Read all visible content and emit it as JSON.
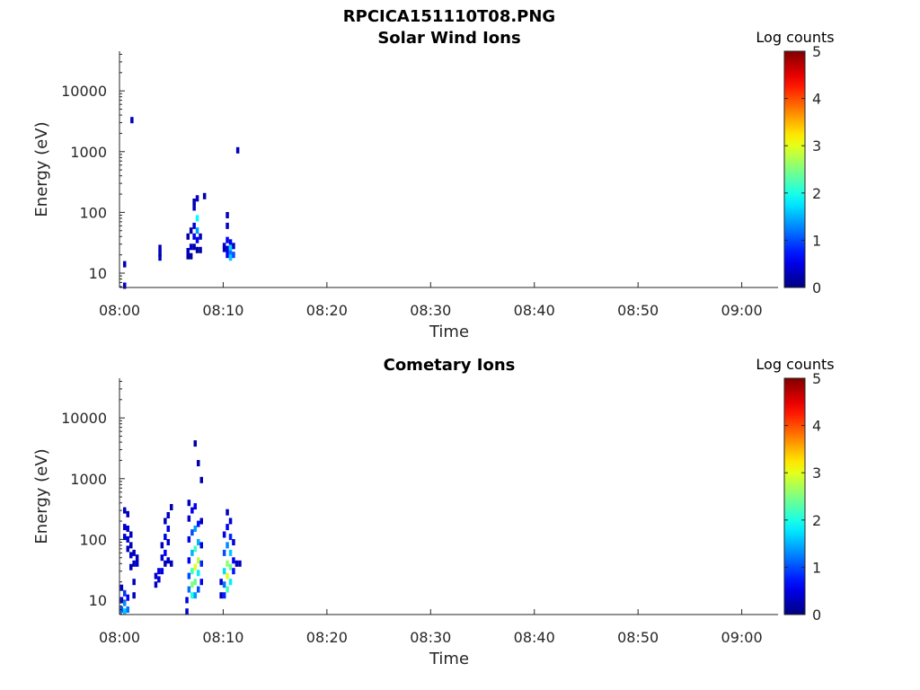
{
  "figure_title": "RPCICA151110T08.PNG",
  "chart_data": [
    {
      "type": "heatmap",
      "title": "Solar Wind Ions",
      "xlabel": "Time",
      "ylabel": "Energy (eV)",
      "x_ticks": [
        "08:00",
        "08:10",
        "08:20",
        "08:30",
        "08:40",
        "08:50",
        "09:00"
      ],
      "xlim_minutes": [
        0,
        63.5
      ],
      "y_scale": "log",
      "y_ticks": [
        "10",
        "100",
        "1000",
        "10000"
      ],
      "ylim": [
        5.8,
        45000
      ],
      "colorbar": {
        "label": "Log counts",
        "ticks": [
          "0",
          "1",
          "2",
          "3",
          "4",
          "5"
        ],
        "range": [
          0,
          5
        ],
        "colormap": "jet"
      },
      "cells": [
        {
          "t": 0.5,
          "e": 14,
          "v": 0.3
        },
        {
          "t": 0.5,
          "e": 6.2,
          "v": 0.4
        },
        {
          "t": 1.2,
          "e": 3300,
          "v": 0.3
        },
        {
          "t": 3.9,
          "e": 26,
          "v": 0.3
        },
        {
          "t": 3.9,
          "e": 21,
          "v": 0.2
        },
        {
          "t": 3.9,
          "e": 18,
          "v": 0.3
        },
        {
          "t": 6.6,
          "e": 19,
          "v": 0.2
        },
        {
          "t": 6.6,
          "e": 23,
          "v": 0.3
        },
        {
          "t": 6.6,
          "e": 40,
          "v": 0.2
        },
        {
          "t": 6.9,
          "e": 27,
          "v": 0.4
        },
        {
          "t": 6.9,
          "e": 50,
          "v": 0.2
        },
        {
          "t": 6.9,
          "e": 19,
          "v": 0.2
        },
        {
          "t": 7.2,
          "e": 60,
          "v": 0.4
        },
        {
          "t": 7.2,
          "e": 40,
          "v": 0.5
        },
        {
          "t": 7.2,
          "e": 27,
          "v": 0.2
        },
        {
          "t": 7.2,
          "e": 120,
          "v": 0.3
        },
        {
          "t": 7.2,
          "e": 150,
          "v": 0.2
        },
        {
          "t": 7.5,
          "e": 80,
          "v": 1.9
        },
        {
          "t": 7.5,
          "e": 50,
          "v": 1.4
        },
        {
          "t": 7.5,
          "e": 35,
          "v": 0.6
        },
        {
          "t": 7.5,
          "e": 170,
          "v": 0.3
        },
        {
          "t": 7.5,
          "e": 24,
          "v": 0.2
        },
        {
          "t": 7.8,
          "e": 40,
          "v": 0.3
        },
        {
          "t": 7.8,
          "e": 24,
          "v": 0.2
        },
        {
          "t": 8.2,
          "e": 185,
          "v": 0.2
        },
        {
          "t": 10.1,
          "e": 28,
          "v": 0.4
        },
        {
          "t": 10.1,
          "e": 25,
          "v": 0.2
        },
        {
          "t": 10.4,
          "e": 90,
          "v": 0.3
        },
        {
          "t": 10.4,
          "e": 60,
          "v": 0.3
        },
        {
          "t": 10.4,
          "e": 35,
          "v": 0.6
        },
        {
          "t": 10.4,
          "e": 25,
          "v": 0.5
        },
        {
          "t": 10.4,
          "e": 20,
          "v": 0.6
        },
        {
          "t": 10.7,
          "e": 32,
          "v": 0.5
        },
        {
          "t": 10.7,
          "e": 26,
          "v": 1.7
        },
        {
          "t": 10.7,
          "e": 21,
          "v": 1.2
        },
        {
          "t": 10.7,
          "e": 18,
          "v": 1.6
        },
        {
          "t": 11.0,
          "e": 28,
          "v": 0.4
        },
        {
          "t": 11.0,
          "e": 20,
          "v": 1.0
        },
        {
          "t": 11.4,
          "e": 1050,
          "v": 0.3
        }
      ]
    },
    {
      "type": "heatmap",
      "title": "Cometary Ions",
      "xlabel": "Time",
      "ylabel": "Energy (eV)",
      "x_ticks": [
        "08:00",
        "08:10",
        "08:20",
        "08:30",
        "08:40",
        "08:50",
        "09:00"
      ],
      "xlim_minutes": [
        0,
        63.5
      ],
      "y_scale": "log",
      "y_ticks": [
        "10",
        "100",
        "1000",
        "10000"
      ],
      "ylim": [
        5.8,
        45000
      ],
      "colorbar": {
        "label": "Log counts",
        "ticks": [
          "0",
          "1",
          "2",
          "3",
          "4",
          "5"
        ],
        "range": [
          0,
          5
        ],
        "colormap": "jet"
      },
      "cells": [
        {
          "t": 0.2,
          "e": 16,
          "v": 0.3
        },
        {
          "t": 0.2,
          "e": 10,
          "v": 0.6
        },
        {
          "t": 0.2,
          "e": 7,
          "v": 1.1
        },
        {
          "t": 0.5,
          "e": 300,
          "v": 0.3
        },
        {
          "t": 0.5,
          "e": 160,
          "v": 0.4
        },
        {
          "t": 0.5,
          "e": 110,
          "v": 0.5
        },
        {
          "t": 0.5,
          "e": 13,
          "v": 0.9
        },
        {
          "t": 0.5,
          "e": 9,
          "v": 1.3
        },
        {
          "t": 0.5,
          "e": 6.5,
          "v": 1.6
        },
        {
          "t": 0.8,
          "e": 260,
          "v": 0.3
        },
        {
          "t": 0.8,
          "e": 150,
          "v": 0.4
        },
        {
          "t": 0.8,
          "e": 100,
          "v": 0.4
        },
        {
          "t": 0.8,
          "e": 70,
          "v": 0.3
        },
        {
          "t": 0.8,
          "e": 11,
          "v": 0.6
        },
        {
          "t": 0.8,
          "e": 7,
          "v": 1.2
        },
        {
          "t": 1.1,
          "e": 120,
          "v": 0.3
        },
        {
          "t": 1.1,
          "e": 80,
          "v": 0.3
        },
        {
          "t": 1.1,
          "e": 55,
          "v": 0.4
        },
        {
          "t": 1.1,
          "e": 35,
          "v": 0.3
        },
        {
          "t": 1.4,
          "e": 60,
          "v": 0.3
        },
        {
          "t": 1.4,
          "e": 40,
          "v": 0.3
        },
        {
          "t": 1.4,
          "e": 20,
          "v": 0.3
        },
        {
          "t": 1.4,
          "e": 12,
          "v": 0.3
        },
        {
          "t": 1.7,
          "e": 50,
          "v": 0.3
        },
        {
          "t": 1.7,
          "e": 40,
          "v": 0.4
        },
        {
          "t": 3.5,
          "e": 25,
          "v": 0.4
        },
        {
          "t": 3.5,
          "e": 18,
          "v": 0.3
        },
        {
          "t": 3.8,
          "e": 30,
          "v": 0.5
        },
        {
          "t": 3.8,
          "e": 22,
          "v": 0.4
        },
        {
          "t": 4.1,
          "e": 80,
          "v": 0.3
        },
        {
          "t": 4.1,
          "e": 50,
          "v": 0.4
        },
        {
          "t": 4.1,
          "e": 30,
          "v": 0.5
        },
        {
          "t": 4.4,
          "e": 200,
          "v": 0.3
        },
        {
          "t": 4.4,
          "e": 110,
          "v": 0.5
        },
        {
          "t": 4.4,
          "e": 60,
          "v": 0.6
        },
        {
          "t": 4.4,
          "e": 40,
          "v": 0.3
        },
        {
          "t": 4.7,
          "e": 250,
          "v": 0.3
        },
        {
          "t": 4.7,
          "e": 150,
          "v": 0.5
        },
        {
          "t": 4.7,
          "e": 90,
          "v": 0.4
        },
        {
          "t": 4.7,
          "e": 45,
          "v": 0.3
        },
        {
          "t": 5.0,
          "e": 340,
          "v": 0.2
        },
        {
          "t": 5.0,
          "e": 40,
          "v": 0.3
        },
        {
          "t": 6.5,
          "e": 6.5,
          "v": 0.4
        },
        {
          "t": 6.5,
          "e": 10,
          "v": 0.5
        },
        {
          "t": 6.7,
          "e": 15,
          "v": 1.2
        },
        {
          "t": 6.7,
          "e": 25,
          "v": 1.0
        },
        {
          "t": 6.7,
          "e": 45,
          "v": 0.6
        },
        {
          "t": 6.7,
          "e": 100,
          "v": 0.5
        },
        {
          "t": 6.7,
          "e": 220,
          "v": 0.4
        },
        {
          "t": 6.7,
          "e": 400,
          "v": 0.3
        },
        {
          "t": 7.0,
          "e": 12,
          "v": 2.0
        },
        {
          "t": 7.0,
          "e": 18,
          "v": 2.5
        },
        {
          "t": 7.0,
          "e": 30,
          "v": 2.2
        },
        {
          "t": 7.0,
          "e": 60,
          "v": 1.5
        },
        {
          "t": 7.0,
          "e": 130,
          "v": 1.0
        },
        {
          "t": 7.0,
          "e": 300,
          "v": 0.5
        },
        {
          "t": 7.3,
          "e": 12,
          "v": 1.4
        },
        {
          "t": 7.3,
          "e": 20,
          "v": 2.4
        },
        {
          "t": 7.3,
          "e": 35,
          "v": 3.0
        },
        {
          "t": 7.3,
          "e": 70,
          "v": 2.2
        },
        {
          "t": 7.3,
          "e": 150,
          "v": 1.4
        },
        {
          "t": 7.3,
          "e": 350,
          "v": 0.6
        },
        {
          "t": 7.3,
          "e": 3800,
          "v": 0.2
        },
        {
          "t": 7.6,
          "e": 15,
          "v": 1.0
        },
        {
          "t": 7.6,
          "e": 28,
          "v": 1.8
        },
        {
          "t": 7.6,
          "e": 45,
          "v": 2.8
        },
        {
          "t": 7.6,
          "e": 90,
          "v": 1.5
        },
        {
          "t": 7.6,
          "e": 180,
          "v": 0.7
        },
        {
          "t": 7.6,
          "e": 1800,
          "v": 0.2
        },
        {
          "t": 7.9,
          "e": 20,
          "v": 0.5
        },
        {
          "t": 7.9,
          "e": 40,
          "v": 0.8
        },
        {
          "t": 7.9,
          "e": 80,
          "v": 0.5
        },
        {
          "t": 7.9,
          "e": 200,
          "v": 0.3
        },
        {
          "t": 7.9,
          "e": 950,
          "v": 0.2
        },
        {
          "t": 9.8,
          "e": 12,
          "v": 0.3
        },
        {
          "t": 9.8,
          "e": 20,
          "v": 0.4
        },
        {
          "t": 10.1,
          "e": 18,
          "v": 1.2
        },
        {
          "t": 10.1,
          "e": 30,
          "v": 1.7
        },
        {
          "t": 10.1,
          "e": 60,
          "v": 1.0
        },
        {
          "t": 10.1,
          "e": 120,
          "v": 0.5
        },
        {
          "t": 10.1,
          "e": 12,
          "v": 0.8
        },
        {
          "t": 10.4,
          "e": 15,
          "v": 2.2
        },
        {
          "t": 10.4,
          "e": 25,
          "v": 3.0
        },
        {
          "t": 10.4,
          "e": 40,
          "v": 2.6
        },
        {
          "t": 10.4,
          "e": 80,
          "v": 1.3
        },
        {
          "t": 10.4,
          "e": 160,
          "v": 0.6
        },
        {
          "t": 10.4,
          "e": 280,
          "v": 0.3
        },
        {
          "t": 10.7,
          "e": 20,
          "v": 1.8
        },
        {
          "t": 10.7,
          "e": 35,
          "v": 2.4
        },
        {
          "t": 10.7,
          "e": 60,
          "v": 1.6
        },
        {
          "t": 10.7,
          "e": 110,
          "v": 0.8
        },
        {
          "t": 10.7,
          "e": 200,
          "v": 0.4
        },
        {
          "t": 11.0,
          "e": 30,
          "v": 0.7
        },
        {
          "t": 11.0,
          "e": 45,
          "v": 0.6
        },
        {
          "t": 11.0,
          "e": 90,
          "v": 0.4
        },
        {
          "t": 11.3,
          "e": 40,
          "v": 0.3
        },
        {
          "t": 11.6,
          "e": 40,
          "v": 0.3
        }
      ]
    }
  ]
}
